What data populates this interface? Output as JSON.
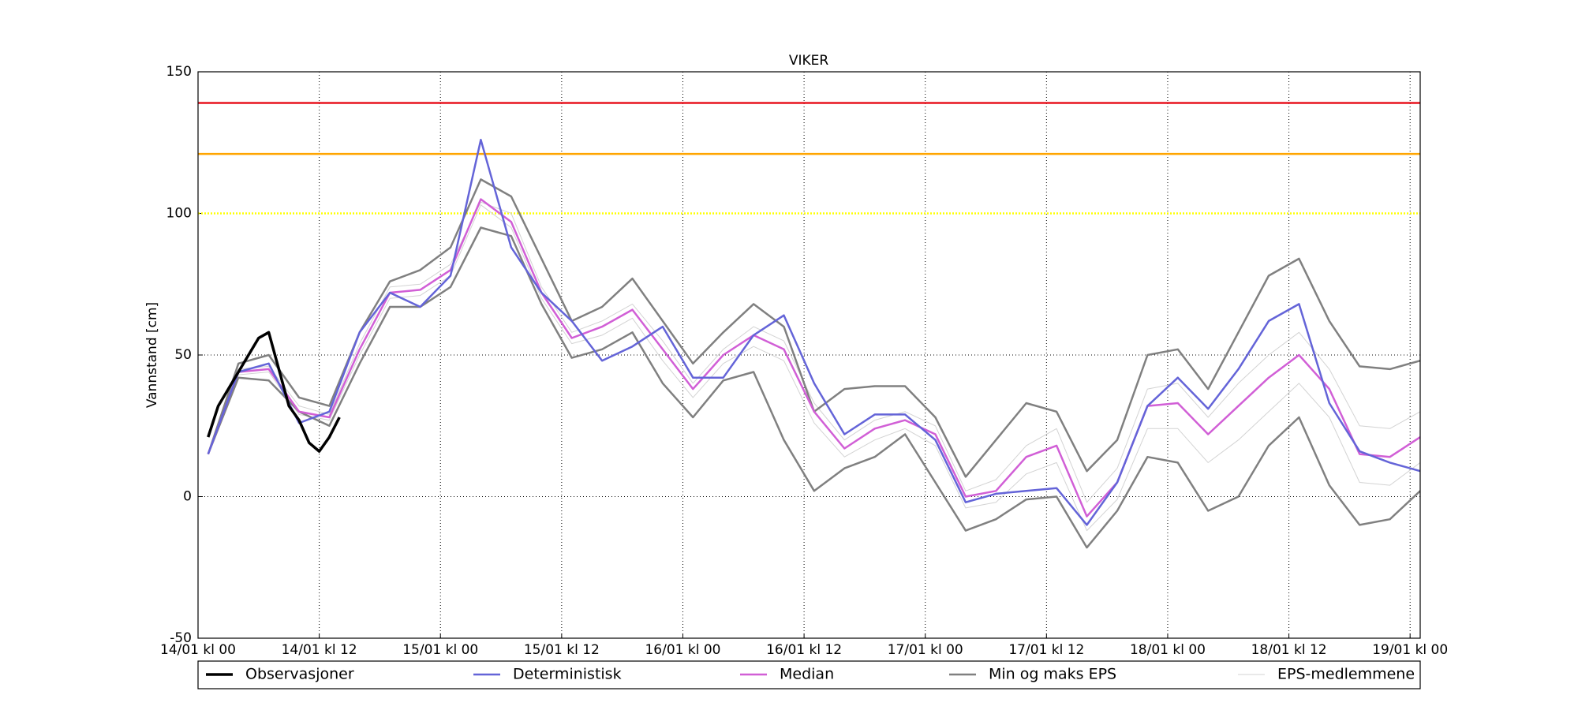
{
  "chart_data": {
    "type": "line",
    "title": "VIKER",
    "y_label": "Vannstand [cm]",
    "xlim": [
      0,
      121
    ],
    "xticks": [
      {
        "value": 0,
        "label": "14/01 kl 00"
      },
      {
        "value": 12,
        "label": "14/01 kl 12"
      },
      {
        "value": 24,
        "label": "15/01 kl 00"
      },
      {
        "value": 36,
        "label": "15/01 kl 12"
      },
      {
        "value": 48,
        "label": "16/01 kl 00"
      },
      {
        "value": 60,
        "label": "16/01 kl 12"
      },
      {
        "value": 72,
        "label": "17/01 kl 00"
      },
      {
        "value": 84,
        "label": "17/01 kl 12"
      },
      {
        "value": 96,
        "label": "18/01 kl 00"
      },
      {
        "value": 108,
        "label": "18/01 kl 12"
      },
      {
        "value": 120,
        "label": "19/01 kl 00"
      }
    ],
    "ylim": [
      -50,
      150
    ],
    "yticks": [
      -50,
      0,
      50,
      100,
      150
    ],
    "grid": true,
    "legend": "bottom",
    "thresholds": [
      {
        "value": 139,
        "color": "#e8141e"
      },
      {
        "value": 121,
        "color": "#ffa500"
      },
      {
        "value": 100,
        "color": "#ffff00",
        "dotted": true
      }
    ],
    "x": [
      1,
      4,
      7,
      10,
      13,
      16,
      19,
      22,
      25,
      28,
      31,
      34,
      37,
      40,
      43,
      46,
      49,
      52,
      55,
      58,
      61,
      64,
      67,
      70,
      73,
      76,
      79,
      82,
      85,
      88,
      91,
      94,
      97,
      100,
      103,
      106,
      109,
      112,
      115,
      118,
      121
    ],
    "series": [
      {
        "name": "Observasjoner",
        "color": "#000000",
        "width": 3.5,
        "x": [
          1,
          2,
          3,
          4,
          5,
          6,
          7,
          8,
          9,
          10,
          11,
          12,
          13,
          14
        ],
        "values": [
          21,
          32,
          38,
          44,
          50,
          56,
          58,
          45,
          32,
          27,
          19,
          16,
          21,
          28
        ]
      },
      {
        "name": "Deterministisk",
        "color": "#6464d8",
        "width": 2.5,
        "values": [
          15,
          44,
          47,
          26,
          30,
          58,
          72,
          67,
          78,
          126,
          88,
          72,
          62,
          48,
          53,
          60,
          42,
          42,
          57,
          64,
          40,
          22,
          29,
          29,
          20,
          -2,
          1,
          2,
          3,
          -10,
          5,
          32,
          42,
          31,
          45,
          62,
          68,
          33,
          16,
          12,
          9
        ]
      },
      {
        "name": "Median",
        "color": "#d15fd6",
        "width": 2.5,
        "values": [
          15,
          44,
          45,
          30,
          28,
          52,
          72,
          73,
          80,
          105,
          97,
          72,
          56,
          60,
          66,
          52,
          38,
          50,
          57,
          52,
          30,
          17,
          24,
          27,
          22,
          0,
          2,
          14,
          18,
          -7,
          5,
          32,
          33,
          22,
          32,
          42,
          50,
          38,
          15,
          14,
          21
        ]
      },
      {
        "name": "Min og maks EPS",
        "color": "#808080",
        "width": 2.5,
        "values": [
          15,
          47,
          50,
          35,
          32,
          58,
          76,
          80,
          88,
          112,
          106,
          84,
          62,
          67,
          77,
          62,
          47,
          58,
          68,
          60,
          30,
          38,
          39,
          39,
          28,
          7,
          20,
          33,
          30,
          9,
          20,
          50,
          52,
          38,
          58,
          78,
          84,
          62,
          46,
          45,
          48
        ],
        "min_values": [
          15,
          42,
          41,
          30,
          25,
          47,
          67,
          67,
          74,
          95,
          92,
          68,
          49,
          52,
          58,
          40,
          28,
          41,
          44,
          20,
          2,
          10,
          14,
          22,
          5,
          -12,
          -8,
          -1,
          0,
          -18,
          -5,
          14,
          12,
          -5,
          0,
          18,
          28,
          4,
          -10,
          -8,
          2
        ]
      },
      {
        "name": "EPS-medlemmene",
        "color": "#d3d3d3",
        "width": 1,
        "members": [
          [
            15,
            45,
            46,
            32,
            29,
            54,
            74,
            75,
            82,
            104,
            100,
            74,
            58,
            62,
            68,
            55,
            40,
            52,
            60,
            55,
            33,
            20,
            27,
            30,
            25,
            2,
            6,
            18,
            24,
            -2,
            10,
            38,
            40,
            28,
            40,
            50,
            58,
            45,
            25,
            24,
            30
          ],
          [
            15,
            43,
            44,
            29,
            27,
            50,
            70,
            71,
            78,
            103,
            95,
            70,
            54,
            57,
            63,
            48,
            35,
            47,
            53,
            48,
            26,
            14,
            20,
            24,
            18,
            -4,
            -2,
            8,
            12,
            -12,
            -1,
            24,
            24,
            12,
            20,
            30,
            40,
            28,
            5,
            4,
            12
          ]
        ]
      }
    ]
  }
}
